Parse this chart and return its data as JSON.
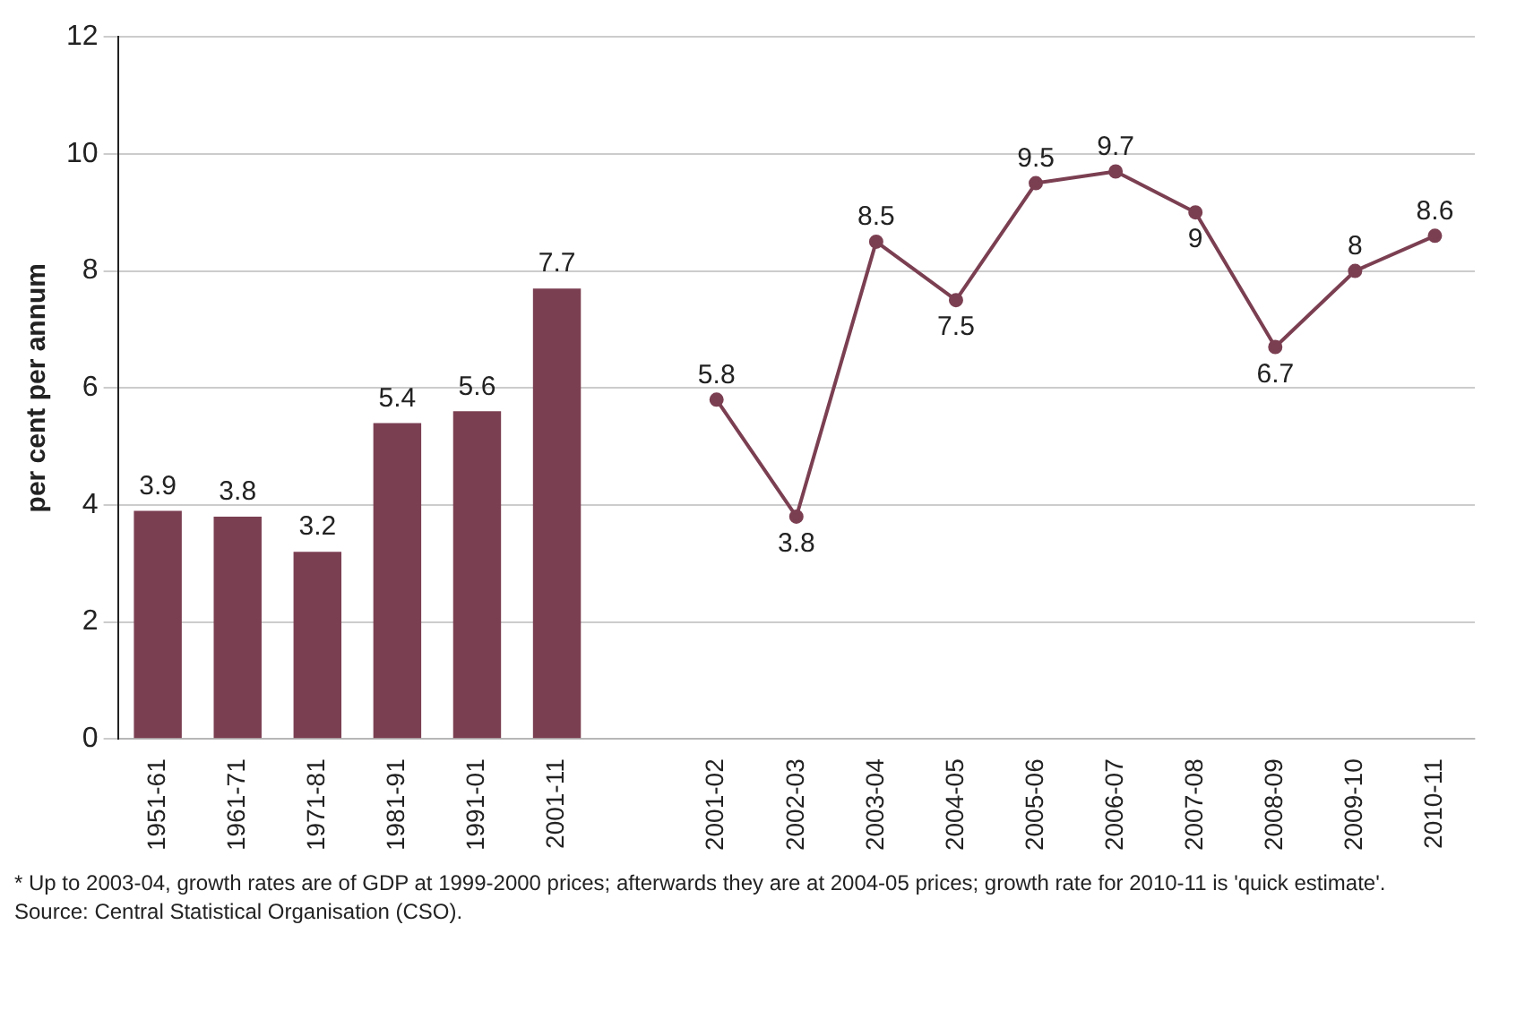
{
  "chart_data": {
    "type": "bar",
    "ylabel": "per cent per annum",
    "categories": [
      "1951-61",
      "1961-71",
      "1971-81",
      "1981-91",
      "1991-01",
      "2001-11",
      null,
      "2001-02",
      "2002-03",
      "2003-04",
      "2004-05",
      "2005-06",
      "2006-07",
      "2007-08",
      "2008-09",
      "2009-10",
      "2010-11"
    ],
    "series": [
      {
        "color": "#7b3f52",
        "values": [
          3.9,
          3.8,
          3.2,
          5.4,
          5.6,
          7.7,
          null,
          null,
          null,
          null,
          null,
          null,
          null,
          null,
          null,
          null,
          null
        ]
      },
      {
        "type": "line",
        "color": "#7b3f52",
        "marker": "circle",
        "values": [
          null,
          null,
          null,
          null,
          null,
          null,
          null,
          5.8,
          3.8,
          8.5,
          7.5,
          9.5,
          9.7,
          9,
          6.7,
          8,
          8.6
        ]
      }
    ],
    "ylim": [
      0,
      12
    ],
    "yticks": [
      0,
      2,
      4,
      6,
      8,
      10,
      12
    ],
    "grid": "y",
    "data_labels": true,
    "annotations": [
      "* Up to 2003-04, growth rates are of GDP at 1999-2000 prices; afterwards they are at 2004-05 prices; growth rate for 2010-11 is 'quick estimate'.",
      "Source: Central Statistical Organisation (CSO)."
    ]
  }
}
